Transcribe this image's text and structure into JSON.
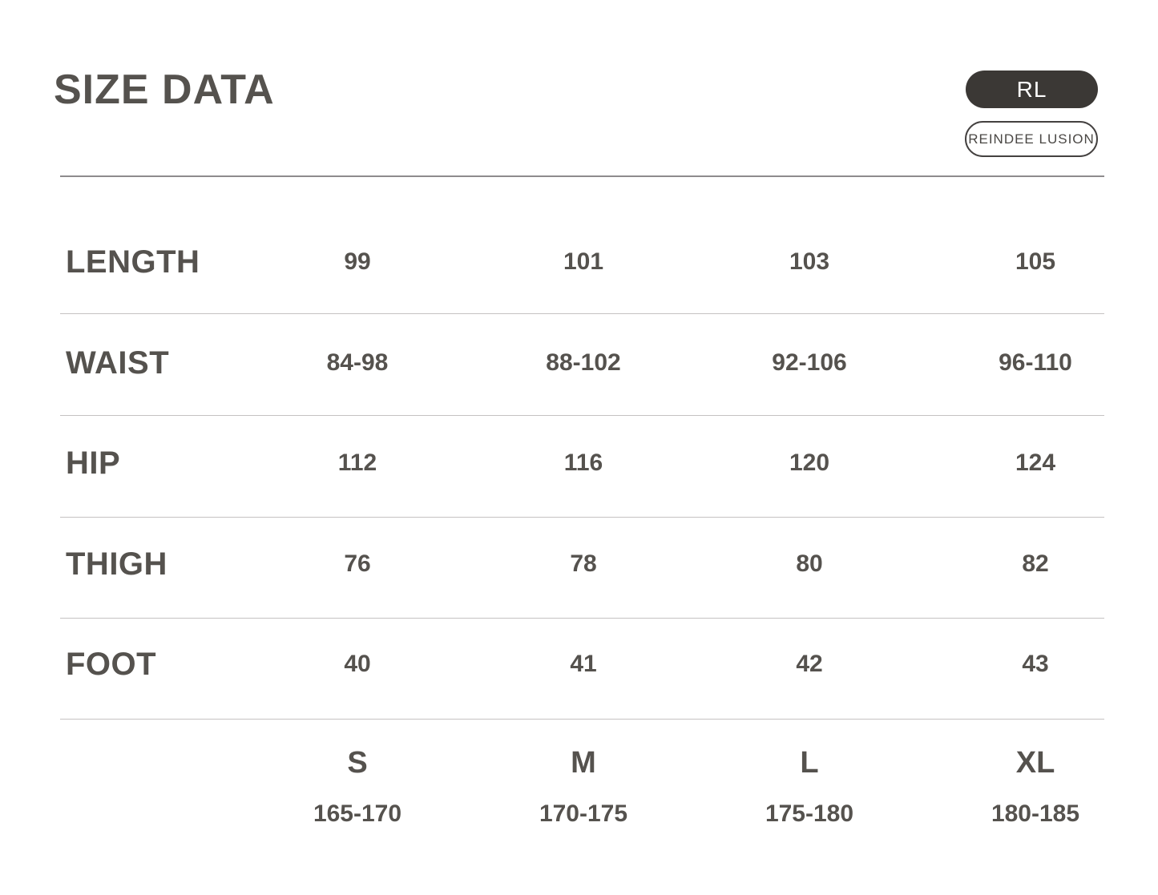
{
  "header": {
    "title": "SIZE DATA",
    "badges": {
      "initials": "RL",
      "brand": "REINDEE LUSION"
    }
  },
  "colors": {
    "text": "#55524e",
    "badge_dark_bg": "#3b3835",
    "badge_dark_text": "#ffffff",
    "badge_outline_border": "#444140",
    "rule_dark": "#8e8b8d",
    "rule_light": "#c5c2c2",
    "background": "#ffffff"
  },
  "chart_data": {
    "type": "table",
    "title": "SIZE DATA",
    "size_columns": [
      {
        "size": "S",
        "height_range": "165-170"
      },
      {
        "size": "M",
        "height_range": "170-175"
      },
      {
        "size": "L",
        "height_range": "175-180"
      },
      {
        "size": "XL",
        "height_range": "180-185"
      }
    ],
    "rows": [
      {
        "label": "LENGTH",
        "values": [
          "99",
          "101",
          "103",
          "105"
        ]
      },
      {
        "label": "WAIST",
        "values": [
          "84-98",
          "88-102",
          "92-106",
          "96-110"
        ]
      },
      {
        "label": "HIP",
        "values": [
          "112",
          "116",
          "120",
          "124"
        ]
      },
      {
        "label": "THIGH",
        "values": [
          "76",
          "78",
          "80",
          "82"
        ]
      },
      {
        "label": "FOOT",
        "values": [
          "40",
          "41",
          "42",
          "43"
        ]
      }
    ]
  }
}
